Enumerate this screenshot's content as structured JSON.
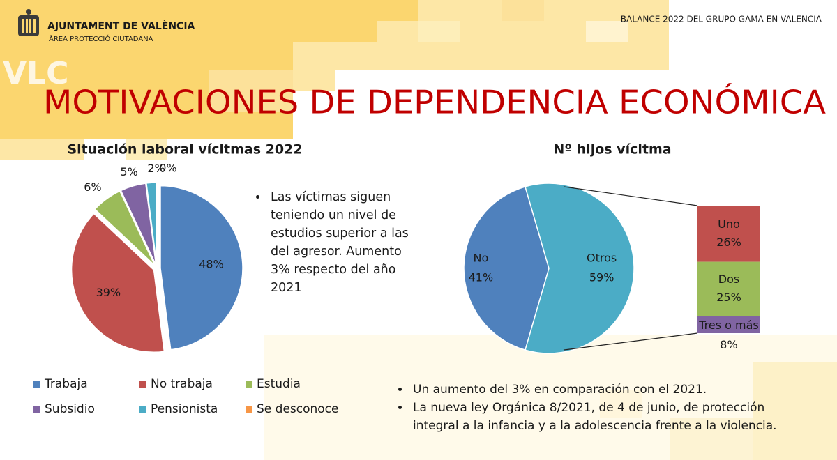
{
  "header": {
    "org": "AJUNTAMENT DE VALÈNCIA",
    "dept": "ÀREA PROTECCIÓ CIUTADANA",
    "right": "BALANCE 2022 DEL GRUPO GAMA EN VALENCIA",
    "watermark": "VLC"
  },
  "title": "MOTIVACIONES DE DEPENDENCIA ECONÓMICA",
  "chart_data": [
    {
      "type": "pie",
      "title": "Situación laboral vícitmas 2022",
      "categories": [
        "Trabaja",
        "No trabaja",
        "Estudia",
        "Subsidio",
        "Pensionista",
        "Se desconoce"
      ],
      "values": [
        48,
        39,
        6,
        5,
        2,
        0
      ],
      "value_labels": [
        "48%",
        "39%",
        "6%",
        "5%",
        "2%",
        "0%"
      ],
      "colors": [
        "#4f81bd",
        "#c0504d",
        "#9bbb59",
        "#8064a2",
        "#4bacc6",
        "#f79646"
      ],
      "legend": "bottom"
    },
    {
      "type": "pie-of-bar",
      "title": "Nº hijos vícitma",
      "categories": [
        "No",
        "Otros"
      ],
      "values": [
        41,
        59
      ],
      "value_labels": [
        "41%",
        "59%"
      ],
      "colors": [
        "#4f81bd",
        "#4bacc6"
      ],
      "breakdown": {
        "categories": [
          "Uno",
          "Dos",
          "Tres o más"
        ],
        "values": [
          26,
          25,
          8
        ],
        "value_labels": [
          "26%",
          "25%",
          "8%"
        ],
        "colors": [
          "#c0504d",
          "#9bbb59",
          "#8064a2"
        ]
      }
    }
  ],
  "notes_left": [
    "Las víctimas siguen teniendo un nivel de estudios superior a las del agresor. Aumento 3% respecto del año 2021"
  ],
  "notes_bottom": [
    "Un aumento del 3% en comparación con el 2021.",
    "La nueva ley Orgánica 8/2021, de 4 de junio, de protección integral a la infancia y a la adolescencia frente a la violencia."
  ]
}
